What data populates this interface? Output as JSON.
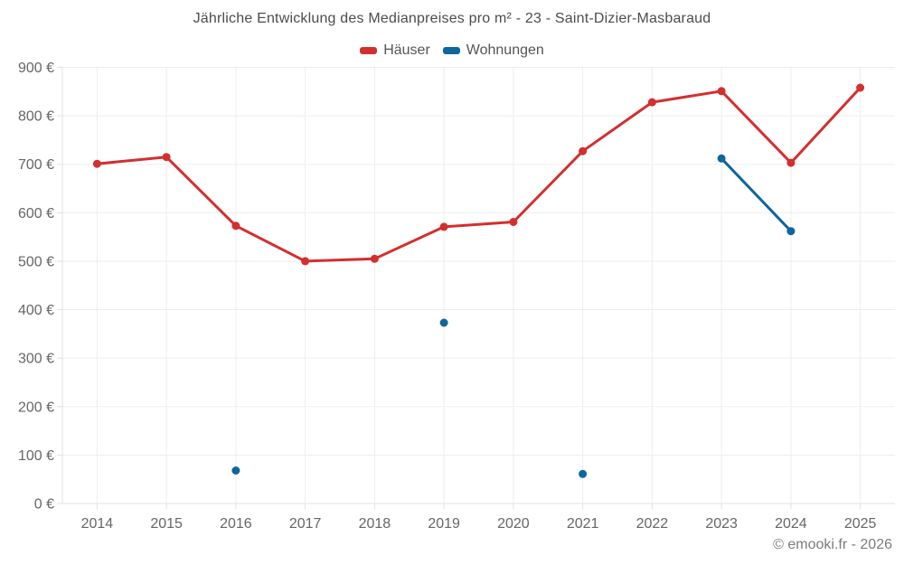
{
  "chart_data": {
    "type": "line",
    "title": "Jährliche Entwicklung des Medianpreises pro m² - 23 - Saint-Dizier-Masbaraud",
    "xlabel": "",
    "ylabel": "",
    "categories": [
      "2014",
      "2015",
      "2016",
      "2017",
      "2018",
      "2019",
      "2020",
      "2021",
      "2022",
      "2023",
      "2024",
      "2025"
    ],
    "series": [
      {
        "key": "haeuser",
        "name": "Häuser",
        "color": "#d32f2f",
        "values": [
          701,
          715,
          573,
          500,
          505,
          571,
          581,
          727,
          828,
          851,
          703,
          858
        ]
      },
      {
        "key": "wohnungen",
        "name": "Wohnungen",
        "color": "#0e669c",
        "values": [
          null,
          null,
          68,
          null,
          null,
          373,
          null,
          61,
          null,
          712,
          562,
          null
        ]
      }
    ],
    "ylim": [
      0,
      900
    ],
    "ytick_step": 100,
    "ytick_suffix": " €",
    "grid": true,
    "legend_position": "top",
    "colors": {
      "grid": "#ededed",
      "axis": "#e0e0e0",
      "tick_label": "#666666"
    }
  },
  "footer": {
    "text": "© emooki.fr - 2026"
  }
}
